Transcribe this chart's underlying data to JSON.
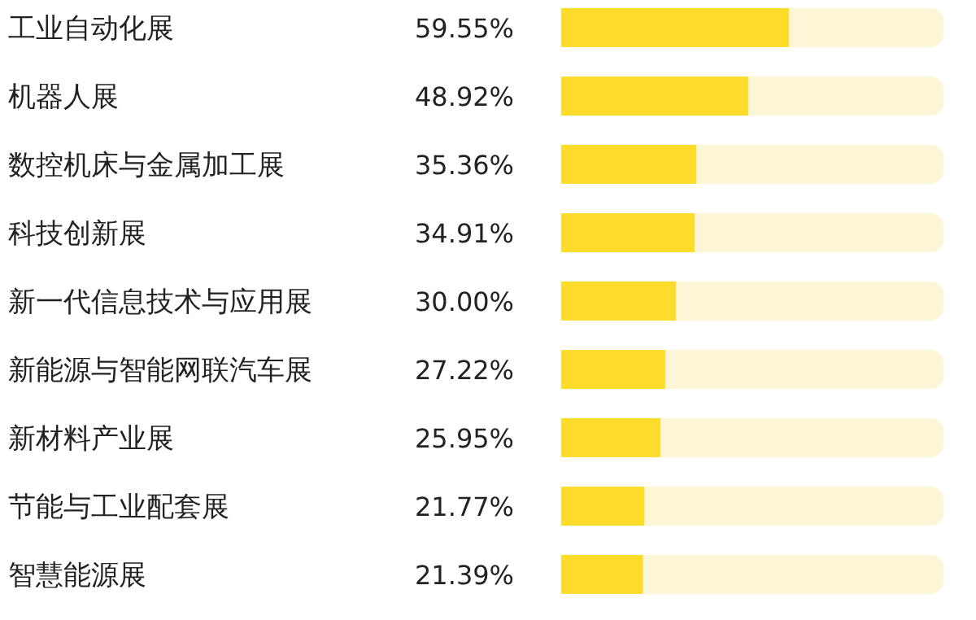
{
  "chart_data": {
    "type": "bar",
    "orientation": "horizontal",
    "categories": [
      "工业自动化展",
      "机器人展",
      "数控机床与金属加工展",
      "科技创新展",
      "新一代信息技术与应用展",
      "新能源与智能网联汽车展",
      "新材料产业展",
      "节能与工业配套展",
      "智慧能源展"
    ],
    "values": [
      59.55,
      48.92,
      35.36,
      34.91,
      30.0,
      27.22,
      25.95,
      21.77,
      21.39
    ],
    "value_labels": [
      "59.55%",
      "48.92%",
      "35.36%",
      "34.91%",
      "30.00%",
      "27.22%",
      "25.95%",
      "21.77%",
      "21.39%"
    ],
    "color": "#fddc2c",
    "xlim": [
      0,
      100
    ]
  }
}
